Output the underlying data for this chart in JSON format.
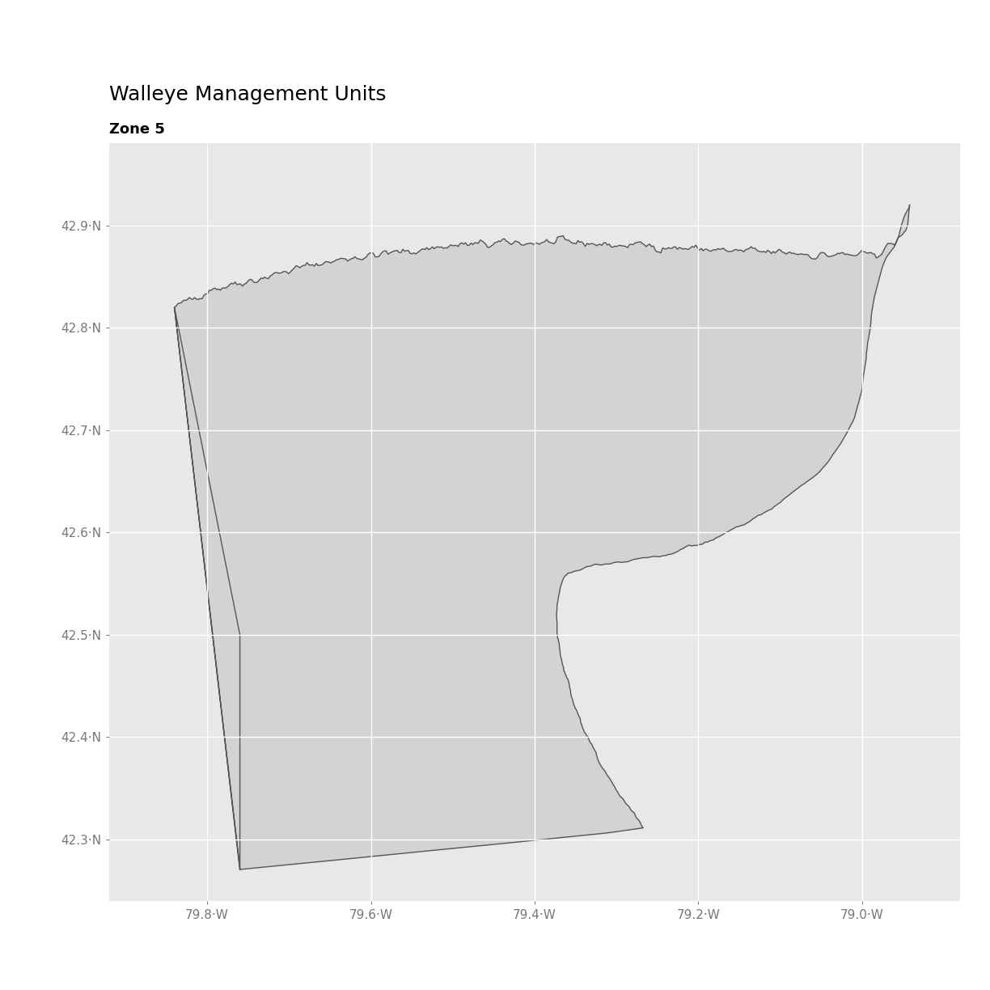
{
  "title": "Walleye Management Units",
  "subtitle": "Zone 5",
  "panel_background": "#e8e8e8",
  "fill_color": "#d3d3d3",
  "edge_color": "#555555",
  "edge_linewidth": 1.0,
  "xlim": [
    -79.92,
    -78.88
  ],
  "ylim": [
    42.24,
    42.98
  ],
  "xticks": [
    -79.8,
    -79.6,
    -79.4,
    -79.2,
    -79.0
  ],
  "yticks": [
    42.3,
    42.4,
    42.5,
    42.6,
    42.7,
    42.8,
    42.9
  ],
  "grid_color": "#ffffff",
  "grid_linewidth": 1.0,
  "title_fontsize": 18,
  "subtitle_fontsize": 13,
  "tick_fontsize": 11,
  "tick_color": "#777777",
  "north_shore_control": [
    [
      -79.84,
      42.82
    ],
    [
      -79.82,
      42.828
    ],
    [
      -79.8,
      42.835
    ],
    [
      -79.78,
      42.84
    ],
    [
      -79.76,
      42.845
    ],
    [
      -79.74,
      42.848
    ],
    [
      -79.72,
      42.852
    ],
    [
      -79.7,
      42.856
    ],
    [
      -79.68,
      42.86
    ],
    [
      -79.66,
      42.863
    ],
    [
      -79.64,
      42.866
    ],
    [
      -79.62,
      42.869
    ],
    [
      -79.6,
      42.871
    ],
    [
      -79.58,
      42.873
    ],
    [
      -79.56,
      42.875
    ],
    [
      -79.54,
      42.877
    ],
    [
      -79.52,
      42.879
    ],
    [
      -79.5,
      42.88
    ],
    [
      -79.48,
      42.881
    ],
    [
      -79.46,
      42.882
    ],
    [
      -79.44,
      42.882
    ],
    [
      -79.42,
      42.883
    ],
    [
      -79.4,
      42.883
    ],
    [
      -79.38,
      42.883
    ],
    [
      -79.36,
      42.883
    ],
    [
      -79.34,
      42.882
    ],
    [
      -79.32,
      42.882
    ],
    [
      -79.3,
      42.881
    ],
    [
      -79.28,
      42.881
    ],
    [
      -79.26,
      42.88
    ],
    [
      -79.24,
      42.879
    ],
    [
      -79.22,
      42.878
    ],
    [
      -79.2,
      42.877
    ],
    [
      -79.18,
      42.876
    ],
    [
      -79.16,
      42.875
    ],
    [
      -79.14,
      42.875
    ],
    [
      -79.12,
      42.874
    ],
    [
      -79.1,
      42.874
    ],
    [
      -79.08,
      42.873
    ],
    [
      -79.06,
      42.872
    ],
    [
      -79.04,
      42.871
    ],
    [
      -79.02,
      42.87
    ],
    [
      -79.0,
      42.87
    ],
    [
      -78.99,
      42.871
    ],
    [
      -78.98,
      42.873
    ],
    [
      -78.97,
      42.878
    ],
    [
      -78.96,
      42.883
    ],
    [
      -78.95,
      42.891
    ],
    [
      -78.944,
      42.9
    ],
    [
      -78.942,
      42.91
    ],
    [
      -78.942,
      42.918
    ]
  ],
  "east_coast_control": [
    [
      -78.942,
      42.918
    ],
    [
      -78.948,
      42.91
    ],
    [
      -78.952,
      42.9
    ],
    [
      -78.955,
      42.89
    ],
    [
      -78.96,
      42.88
    ],
    [
      -78.97,
      42.87
    ],
    [
      -78.975,
      42.86
    ],
    [
      -78.98,
      42.845
    ],
    [
      -78.985,
      42.83
    ],
    [
      -78.988,
      42.815
    ],
    [
      -78.99,
      42.8
    ],
    [
      -78.993,
      42.785
    ],
    [
      -78.995,
      42.77
    ],
    [
      -78.998,
      42.755
    ],
    [
      -79.0,
      42.74
    ],
    [
      -79.005,
      42.725
    ],
    [
      -79.01,
      42.71
    ],
    [
      -79.02,
      42.695
    ],
    [
      -79.03,
      42.682
    ],
    [
      -79.04,
      42.67
    ],
    [
      -79.055,
      42.658
    ],
    [
      -79.07,
      42.648
    ],
    [
      -79.085,
      42.638
    ],
    [
      -79.1,
      42.63
    ],
    [
      -79.115,
      42.622
    ],
    [
      -79.13,
      42.615
    ],
    [
      -79.145,
      42.608
    ],
    [
      -79.16,
      42.602
    ],
    [
      -79.175,
      42.596
    ],
    [
      -79.19,
      42.591
    ],
    [
      -79.205,
      42.587
    ],
    [
      -79.22,
      42.583
    ],
    [
      -79.235,
      42.58
    ],
    [
      -79.25,
      42.577
    ],
    [
      -79.265,
      42.574
    ],
    [
      -79.28,
      42.572
    ],
    [
      -79.295,
      42.57
    ],
    [
      -79.31,
      42.568
    ],
    [
      -79.325,
      42.567
    ],
    [
      -79.34,
      42.565
    ],
    [
      -79.35,
      42.563
    ],
    [
      -79.36,
      42.56
    ],
    [
      -79.365,
      42.555
    ],
    [
      -79.368,
      42.548
    ],
    [
      -79.37,
      42.54
    ],
    [
      -79.372,
      42.53
    ],
    [
      -79.373,
      42.52
    ],
    [
      -79.373,
      42.51
    ],
    [
      -79.372,
      42.5
    ],
    [
      -79.37,
      42.49
    ],
    [
      -79.368,
      42.48
    ],
    [
      -79.365,
      42.47
    ],
    [
      -79.362,
      42.46
    ],
    [
      -79.358,
      42.45
    ],
    [
      -79.354,
      42.44
    ],
    [
      -79.35,
      42.43
    ],
    [
      -79.345,
      42.42
    ],
    [
      -79.34,
      42.41
    ],
    [
      -79.335,
      42.4
    ],
    [
      -79.33,
      42.39
    ],
    [
      -79.323,
      42.38
    ],
    [
      -79.316,
      42.37
    ],
    [
      -79.308,
      42.36
    ],
    [
      -79.3,
      42.35
    ],
    [
      -79.292,
      42.34
    ],
    [
      -79.283,
      42.33
    ],
    [
      -79.275,
      42.32
    ],
    [
      -79.266,
      42.31
    ],
    [
      -79.76,
      42.27
    ]
  ],
  "west_admin_line": [
    [
      -79.76,
      42.27
    ],
    [
      -79.76,
      42.5
    ],
    [
      -79.84,
      42.82
    ]
  ]
}
